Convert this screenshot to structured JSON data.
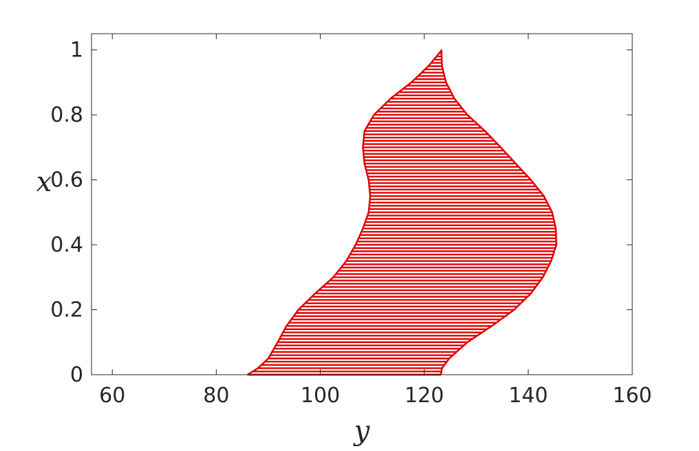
{
  "chart_data": {
    "type": "area",
    "title": "",
    "xlabel": "y",
    "ylabel": "x",
    "xlim": [
      56,
      160
    ],
    "ylim": [
      0,
      1.05
    ],
    "xticks": [
      60,
      80,
      100,
      120,
      140,
      160
    ],
    "xtick_labels": [
      "60",
      "80",
      "100",
      "120",
      "140",
      "160"
    ],
    "yticks": [
      0,
      0.2,
      0.4,
      0.6,
      0.8,
      1
    ],
    "ytick_labels": [
      "0",
      "0.2",
      "0.4",
      "0.6",
      "0.8",
      "1"
    ],
    "grid": false,
    "fill_style": "horizontal-hatch",
    "color": "#e00000",
    "series": [
      {
        "role": "left boundary",
        "points": [
          {
            "x": 0.0,
            "y": 86.0
          },
          {
            "x": 0.02,
            "y": 88.0
          },
          {
            "x": 0.05,
            "y": 90.0
          },
          {
            "x": 0.1,
            "y": 91.8
          },
          {
            "x": 0.15,
            "y": 93.5
          },
          {
            "x": 0.2,
            "y": 95.8
          },
          {
            "x": 0.25,
            "y": 99.0
          },
          {
            "x": 0.3,
            "y": 102.5
          },
          {
            "x": 0.35,
            "y": 105.0
          },
          {
            "x": 0.4,
            "y": 106.8
          },
          {
            "x": 0.45,
            "y": 108.2
          },
          {
            "x": 0.5,
            "y": 109.3
          },
          {
            "x": 0.55,
            "y": 109.6
          },
          {
            "x": 0.6,
            "y": 109.3
          },
          {
            "x": 0.65,
            "y": 108.5
          },
          {
            "x": 0.7,
            "y": 108.2
          },
          {
            "x": 0.75,
            "y": 108.5
          },
          {
            "x": 0.8,
            "y": 110.3
          },
          {
            "x": 0.85,
            "y": 113.5
          },
          {
            "x": 0.9,
            "y": 117.5
          },
          {
            "x": 0.95,
            "y": 120.8
          },
          {
            "x": 1.0,
            "y": 123.4
          }
        ]
      },
      {
        "role": "right boundary",
        "points": [
          {
            "x": 0.0,
            "y": 123.2
          },
          {
            "x": 0.02,
            "y": 123.4
          },
          {
            "x": 0.05,
            "y": 124.8
          },
          {
            "x": 0.1,
            "y": 128.3
          },
          {
            "x": 0.15,
            "y": 133.0
          },
          {
            "x": 0.2,
            "y": 137.3
          },
          {
            "x": 0.25,
            "y": 140.5
          },
          {
            "x": 0.3,
            "y": 142.8
          },
          {
            "x": 0.35,
            "y": 144.4
          },
          {
            "x": 0.4,
            "y": 145.4
          },
          {
            "x": 0.45,
            "y": 145.3
          },
          {
            "x": 0.5,
            "y": 144.6
          },
          {
            "x": 0.55,
            "y": 143.0
          },
          {
            "x": 0.6,
            "y": 140.5
          },
          {
            "x": 0.65,
            "y": 137.6
          },
          {
            "x": 0.7,
            "y": 134.7
          },
          {
            "x": 0.75,
            "y": 131.7
          },
          {
            "x": 0.8,
            "y": 128.3
          },
          {
            "x": 0.85,
            "y": 125.8
          },
          {
            "x": 0.9,
            "y": 124.2
          },
          {
            "x": 0.95,
            "y": 123.4
          },
          {
            "x": 1.0,
            "y": 123.3
          }
        ]
      }
    ]
  }
}
